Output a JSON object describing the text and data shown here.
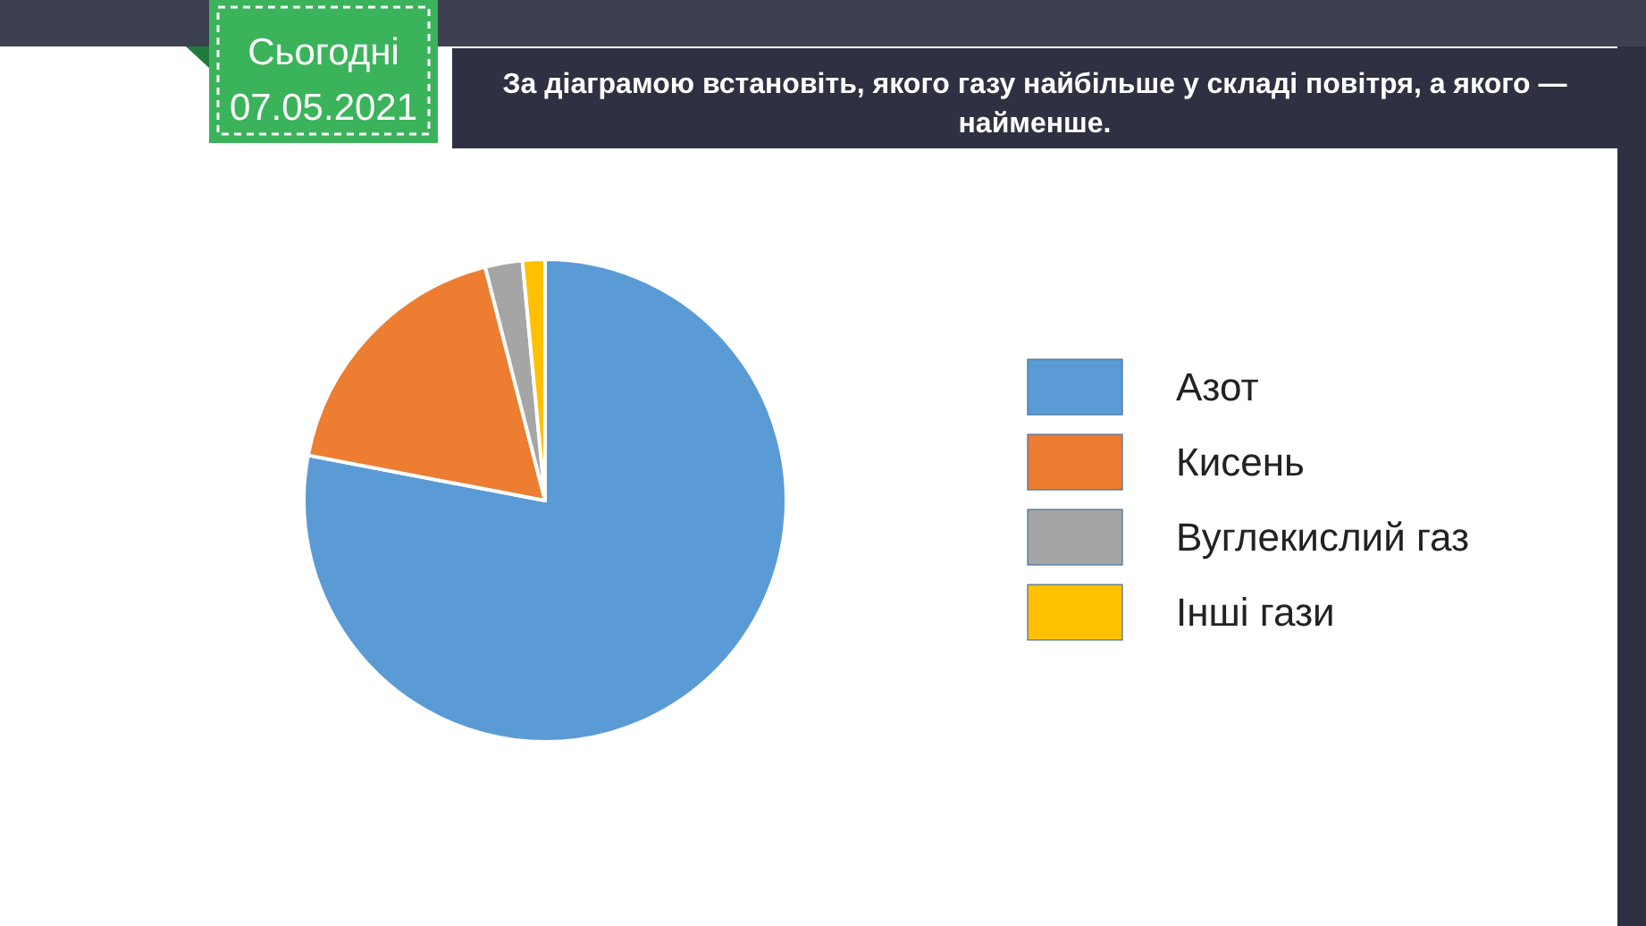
{
  "chart_data": {
    "type": "pie",
    "title": "За діаграмою встановіть, якого газу найбільше у складі повітря, а якого — найменше.",
    "categories": [
      "Азот",
      "Кисень",
      "Вуглекислий газ",
      "Інші гази"
    ],
    "values": [
      78,
      18,
      2.5,
      1.5
    ],
    "colors": [
      "#5b9bd5",
      "#ed7d31",
      "#a5a5a5",
      "#ffc000"
    ],
    "legend": "right",
    "annotations": [
      "Сьогодні",
      "07.05.2021"
    ]
  }
}
